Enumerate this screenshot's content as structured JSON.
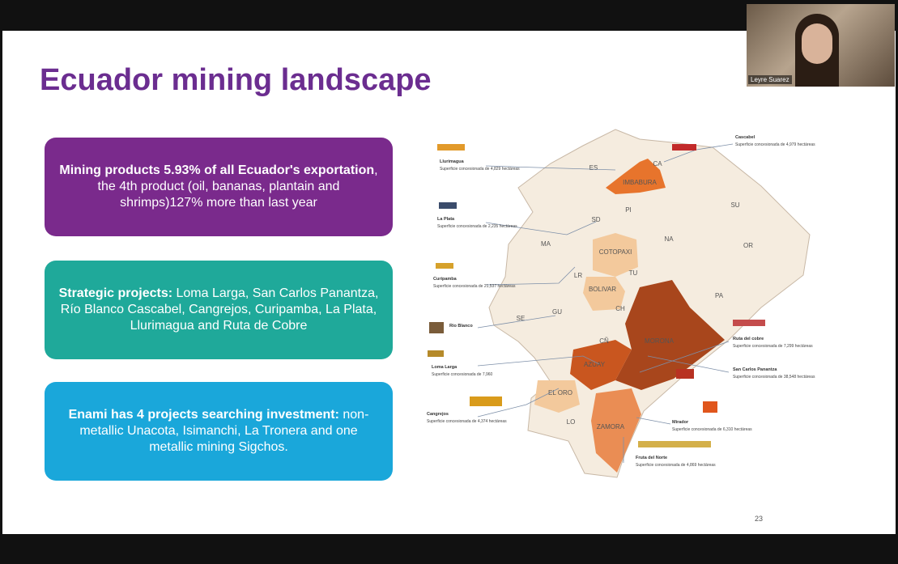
{
  "participant": {
    "name": "Leyre Suarez"
  },
  "slide": {
    "title": "Ecuador mining landscape",
    "page_number": "23",
    "boxes": [
      {
        "bold": "Mining products 5.93% of all Ecuador's exportation",
        "text": ", the 4th product (oil, bananas, plantain and shrimps)127% more than last year"
      },
      {
        "bold": "Strategic projects:",
        "text": "Loma Larga, San Carlos Panantza, Río Blanco Cascabel, Cangrejos, Curipamba, La Plata, Llurimagua and Ruta de Cobre"
      },
      {
        "bold": "Enami has 4 projects searching investment:",
        "text": "non-metallic Unacota, Isimanchi, La Tronera and one metallic mining Sigchos."
      }
    ],
    "map": {
      "provinces": [
        "ES",
        "CA",
        "IMBABURA",
        "SU",
        "PI",
        "SD",
        "NA",
        "OR",
        "MA",
        "COTOPAXI",
        "TU",
        "LR",
        "BOLIVAR",
        "CH",
        "PA",
        "SE",
        "GU",
        "CÑ",
        "MORONA",
        "AZUAY",
        "EL ORO",
        "LO",
        "ZAMORA"
      ],
      "projects": [
        {
          "name": "Llurimagua",
          "description": "Superficie concesionada de 4,829 hectáreas"
        },
        {
          "name": "La Plata",
          "description": "Superficie concesionada de 2,235 hectáreas"
        },
        {
          "name": "Curipamba",
          "description": "Superficie concesionada de 21,537 hectáreas"
        },
        {
          "name": "Rio Blanco",
          "description": null
        },
        {
          "name": "Loma Larga",
          "description": "Superficie concesionada de 7,960"
        },
        {
          "name": "Cangrejos",
          "description": "Superficie concesionada de 4,374 hectáreas"
        },
        {
          "name": "Cascabel",
          "description": "Superficie concesionada de 4,979 hectáreas"
        },
        {
          "name": "Ruta del cobre",
          "description": "Superficie concesionada de 7,299 hectáreas"
        },
        {
          "name": "San Carlos Panantza",
          "description": "Superficie concesionada de 38,548 hectáreas"
        },
        {
          "name": "Mirador",
          "description": "Superficie concesionada de 6,310 hectáreas"
        },
        {
          "name": "Fruta del Norte",
          "description": "Superficie concesionada de 4,869 hectáreas"
        }
      ]
    }
  }
}
